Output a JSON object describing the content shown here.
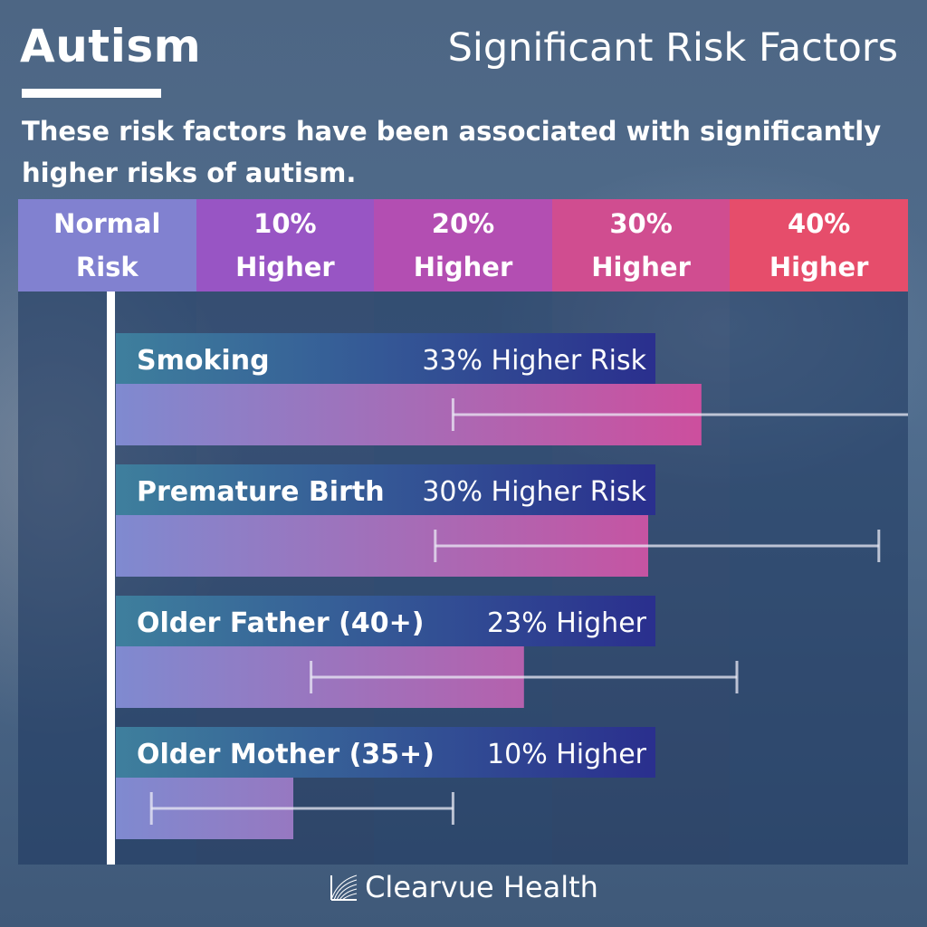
{
  "title": "Autism",
  "subtitle": "Significant Risk Factors",
  "description": "These risk factors have been associated with significantly higher risks of autism.",
  "brand": "Clearvue Health",
  "colors": {
    "header": [
      "#8181d0",
      "#9855c4",
      "#b34eb2",
      "#d04d90",
      "#e64d6b"
    ],
    "bands": [
      "rgba(30,55,95,0.55)",
      "rgba(25,45,85,0.45)",
      "rgba(30,55,95,0.55)",
      "rgba(25,45,85,0.45)",
      "rgba(30,55,95,0.55)"
    ],
    "label_bar_start": "#3e7f9d",
    "label_bar_end": "#2a2f8e",
    "bar_start": "#7f8ad0",
    "bar_end": "#cc4f9e"
  },
  "chart_data": {
    "type": "bar",
    "orientation": "horizontal",
    "x_axis_labels": [
      "Normal\nRisk",
      "10%\nHigher",
      "20%\nHigher",
      "30%\nHigher",
      "40%\nHigher"
    ],
    "xlim": [
      -5,
      45
    ],
    "series": [
      {
        "name": "Smoking",
        "label": "33% Higher Risk",
        "value": 33,
        "ci_low": 19,
        "ci_high": 45
      },
      {
        "name": "Premature Birth",
        "label": "30% Higher Risk",
        "value": 30,
        "ci_low": 18,
        "ci_high": 43
      },
      {
        "name": "Older Father (40+)",
        "label": "23% Higher",
        "value": 23,
        "ci_low": 11,
        "ci_high": 35
      },
      {
        "name": "Older Mother (35+)",
        "label": "10% Higher",
        "value": 10,
        "ci_low": 2,
        "ci_high": 19
      }
    ]
  }
}
